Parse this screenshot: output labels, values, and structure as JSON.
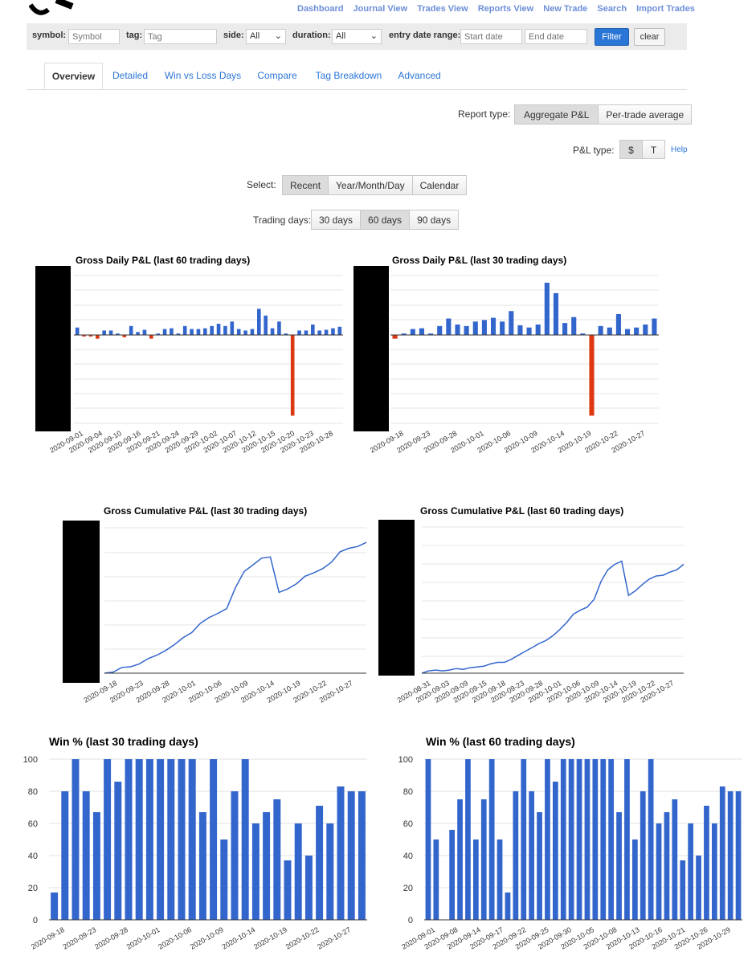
{
  "nav": {
    "links": [
      "Dashboard",
      "Journal View",
      "Trades View",
      "Reports View",
      "New Trade",
      "Search",
      "Import Trades"
    ]
  },
  "filter": {
    "symbol_label": "symbol:",
    "symbol_placeholder": "Symbol",
    "tag_label": "tag:",
    "tag_placeholder": "Tag",
    "side_label": "side:",
    "side_value": "All",
    "duration_label": "duration:",
    "duration_value": "All",
    "date_label": "entry date range:",
    "start_placeholder": "Start date",
    "end_placeholder": "End date",
    "filter_btn": "Filter",
    "clear_btn": "clear"
  },
  "tabs": [
    "Overview",
    "Detailed",
    "Win vs Loss Days",
    "Compare",
    "Tag Breakdown",
    "Advanced"
  ],
  "controls": {
    "report_type_label": "Report type:",
    "report_types": [
      "Aggregate P&L",
      "Per-trade average"
    ],
    "pl_type_label": "P&L type:",
    "pl_types": [
      "$",
      "T"
    ],
    "help": "Help",
    "select_label": "Select:",
    "select_options": [
      "Recent",
      "Year/Month/Day",
      "Calendar"
    ],
    "trading_days_label": "Trading days:",
    "trading_days": [
      "30 days",
      "60 days",
      "90 days"
    ]
  },
  "chart_data": [
    {
      "type": "bar",
      "title": "Gross Daily P&L (last 60 trading days)",
      "x_ticks": [
        "2020-09-01",
        "2020-09-04",
        "2020-09-10",
        "2020-09-16",
        "2020-09-21",
        "2020-09-24",
        "2020-09-29",
        "2020-10-02",
        "2020-10-07",
        "2020-10-12",
        "2020-10-15",
        "2020-10-20",
        "2020-10-23",
        "2020-10-28"
      ],
      "values": [
        0.5,
        -0.1,
        -0.1,
        -0.25,
        0.3,
        0.3,
        0.1,
        -0.15,
        0.6,
        0.2,
        0.35,
        -0.25,
        0.1,
        0.4,
        0.45,
        0.1,
        0.6,
        0.4,
        0.4,
        0.45,
        0.6,
        0.75,
        0.6,
        0.9,
        0.4,
        0.3,
        0.4,
        1.75,
        1.3,
        0.45,
        0.9,
        0.1,
        -5.4,
        0.3,
        0.3,
        0.7,
        0.3,
        0.35,
        0.45,
        0.55
      ],
      "color_pos": "#3366cc",
      "color_neg": "#dc3912"
    },
    {
      "type": "bar",
      "title": "Gross Daily P&L (last 30 trading days)",
      "x_ticks": [
        "2020-09-18",
        "2020-09-23",
        "2020-09-28",
        "2020-10-01",
        "2020-10-06",
        "2020-10-09",
        "2020-10-14",
        "2020-10-19",
        "2020-10-22",
        "2020-10-27"
      ],
      "values": [
        -0.25,
        0.1,
        0.4,
        0.45,
        0.1,
        0.6,
        1.1,
        0.7,
        0.6,
        0.9,
        1.0,
        1.15,
        0.9,
        1.6,
        0.65,
        0.5,
        0.7,
        3.5,
        2.8,
        0.8,
        1.2,
        0.1,
        -5.4,
        0.6,
        0.5,
        1.4,
        0.4,
        0.5,
        0.7,
        1.1
      ],
      "color_pos": "#3366cc",
      "color_neg": "#dc3912"
    },
    {
      "type": "line",
      "title": "Gross Cumulative P&L (last 30 trading days)",
      "x_ticks": [
        "2020-09-18",
        "2020-09-23",
        "2020-09-28",
        "2020-10-01",
        "2020-10-06",
        "2020-10-09",
        "2020-10-14",
        "2020-10-19",
        "2020-10-22",
        "2020-10-27"
      ],
      "values": [
        0,
        0.2,
        1.0,
        1.1,
        1.6,
        2.5,
        3.1,
        3.9,
        4.9,
        6.1,
        7.0,
        8.6,
        9.6,
        10.3,
        11.1,
        14.7,
        17.5,
        18.6,
        19.8,
        20.0,
        13.9,
        14.5,
        15.4,
        16.7,
        17.3,
        18.0,
        19.1,
        20.9,
        21.5,
        21.8,
        22.5
      ],
      "color": "#3366cc"
    },
    {
      "type": "line",
      "title": "Gross Cumulative P&L (last 60 trading days)",
      "x_ticks": [
        "2020-08-31",
        "2020-09-03",
        "2020-09-09",
        "2020-09-15",
        "2020-09-18",
        "2020-09-23",
        "2020-09-28",
        "2020-10-01",
        "2020-10-06",
        "2020-10-09",
        "2020-10-14",
        "2020-10-19",
        "2020-10-22",
        "2020-10-27"
      ],
      "values": [
        0,
        0.3,
        0.4,
        0.3,
        0.4,
        0.6,
        0.5,
        0.7,
        0.8,
        0.9,
        1.2,
        1.4,
        1.4,
        1.8,
        2.3,
        2.8,
        3.3,
        3.8,
        4.2,
        4.8,
        5.6,
        6.5,
        7.6,
        8.1,
        8.5,
        9.5,
        11.8,
        13.3,
        14.0,
        14.4,
        10.0,
        10.6,
        11.4,
        12.1,
        12.5,
        12.6,
        13.0,
        13.3,
        14.0
      ],
      "color": "#3366cc"
    },
    {
      "type": "bar",
      "title": "Win % (last 30 trading days)",
      "x_ticks": [
        "2020-09-18",
        "2020-09-23",
        "2020-09-28",
        "2020-10-01",
        "2020-10-06",
        "2020-10-09",
        "2020-10-14",
        "2020-10-19",
        "2020-10-22",
        "2020-10-27"
      ],
      "y_ticks": [
        0,
        20,
        40,
        60,
        80,
        100
      ],
      "ylim": [
        0,
        100
      ],
      "values": [
        17,
        80,
        100,
        80,
        67,
        100,
        86,
        100,
        100,
        100,
        100,
        100,
        100,
        100,
        67,
        100,
        50,
        80,
        100,
        60,
        67,
        75,
        37,
        60,
        40,
        71,
        60,
        83,
        80,
        80
      ],
      "color": "#3366cc"
    },
    {
      "type": "bar",
      "title": "Win % (last 60 trading days)",
      "x_ticks": [
        "2020-09-01",
        "2020-09-08",
        "2020-09-14",
        "2020-09-17",
        "2020-09-22",
        "2020-09-25",
        "2020-09-30",
        "2020-10-05",
        "2020-10-08",
        "2020-10-13",
        "2020-10-16",
        "2020-10-21",
        "2020-10-26",
        "2020-10-29"
      ],
      "y_ticks": [
        0,
        20,
        40,
        60,
        80,
        100
      ],
      "ylim": [
        0,
        100
      ],
      "values": [
        100,
        50,
        0,
        56,
        75,
        100,
        50,
        75,
        100,
        50,
        17,
        80,
        100,
        80,
        67,
        100,
        86,
        100,
        100,
        100,
        100,
        100,
        100,
        100,
        67,
        100,
        50,
        80,
        100,
        60,
        67,
        75,
        37,
        60,
        40,
        71,
        60,
        83,
        80,
        80
      ],
      "color": "#3366cc"
    }
  ]
}
